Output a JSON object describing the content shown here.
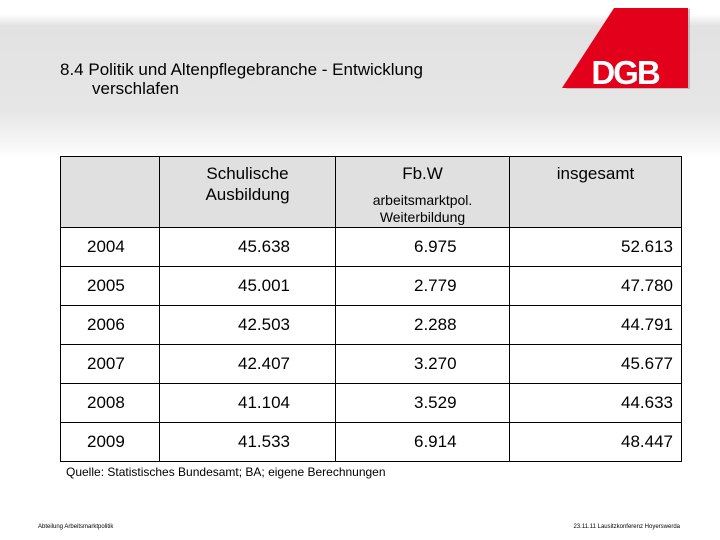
{
  "slide": {
    "title_line1": "8.4  Politik und Altenpflegebranche - Entwicklung",
    "title_line2": "verschlafen",
    "logo_text": "DGB",
    "brand_color": "#e3001b"
  },
  "table": {
    "headers": {
      "col1_line1": "Schulische",
      "col1_line2": "Ausbildung",
      "col2_main": "Fb.W",
      "col2_sub1": "arbeitsmarktpol.",
      "col2_sub2": "Weiterbildung",
      "col3": "insgesamt"
    },
    "rows": [
      {
        "year": "2004",
        "schulisch": "45.638",
        "fbw": "6.975",
        "total": "52.613"
      },
      {
        "year": "2005",
        "schulisch": "45.001",
        "fbw": "2.779",
        "total": "47.780"
      },
      {
        "year": "2006",
        "schulisch": "42.503",
        "fbw": "2.288",
        "total": "44.791"
      },
      {
        "year": "2007",
        "schulisch": "42.407",
        "fbw": "3.270",
        "total": "45.677"
      },
      {
        "year": "2008",
        "schulisch": "41.104",
        "fbw": "3.529",
        "total": "44.633"
      },
      {
        "year": "2009",
        "schulisch": "41.533",
        "fbw": "6.914",
        "total": "48.447"
      }
    ]
  },
  "source": "Quelle: Statistisches Bundesamt; BA; eigene Berechnungen",
  "footer": {
    "left": "Abteilung Arbeitsmarktpolitik",
    "right": "23.11.11 Lausitzkonferenz Hoyerswerda"
  }
}
